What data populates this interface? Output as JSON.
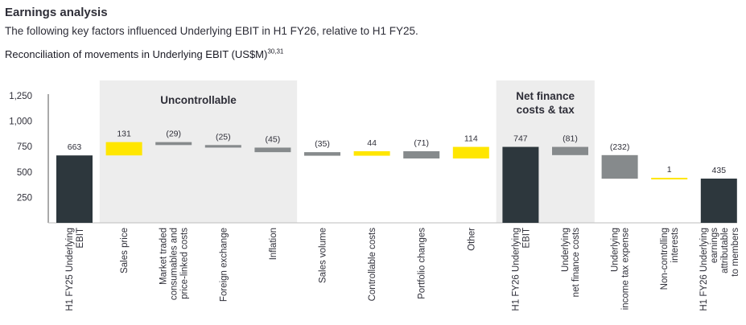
{
  "header": {
    "title": "Earnings analysis",
    "subtitle": "The following key factors influenced Underlying EBIT in H1 FY26, relative to H1 FY25.",
    "chart_title": "Reconciliation of movements in Underlying EBIT (US$M)",
    "chart_title_sup": "30,31"
  },
  "colors": {
    "total": "#2d373d",
    "positive": "#ffe600",
    "negative": "#868a8c",
    "band": "#ededed",
    "axis": "#555555",
    "text": "#2e2e38"
  },
  "chart_data": {
    "type": "bar",
    "subtype": "waterfall",
    "title": "Reconciliation of movements in Underlying EBIT (US$M)",
    "ylim": [
      0,
      1250
    ],
    "yticks": [
      250,
      500,
      750,
      1000,
      1250
    ],
    "ytick_labels": [
      "250",
      "500",
      "750",
      "1,000",
      "1,250"
    ],
    "bands": [
      {
        "label": "Uncontrollable",
        "from": 1,
        "to": 4
      },
      {
        "label_lines": [
          "Net finance",
          "costs & tax"
        ],
        "from": 9,
        "to": 10
      }
    ],
    "bars": [
      {
        "category_lines": [
          "H1 FY25 Underlying",
          "EBIT"
        ],
        "kind": "total",
        "start": 0,
        "end": 663,
        "label": "663"
      },
      {
        "category_lines": [
          "Sales price"
        ],
        "kind": "positive",
        "start": 663,
        "end": 794,
        "label": "131"
      },
      {
        "category_lines": [
          "Market traded",
          "consumables and",
          "price-linked costs"
        ],
        "kind": "negative",
        "start": 794,
        "end": 765,
        "label": "(29)"
      },
      {
        "category_lines": [
          "Foreign exchange"
        ],
        "kind": "negative",
        "start": 765,
        "end": 740,
        "label": "(25)"
      },
      {
        "category_lines": [
          "Inflation"
        ],
        "kind": "negative",
        "start": 740,
        "end": 695,
        "label": "(45)"
      },
      {
        "category_lines": [
          "Sales volume"
        ],
        "kind": "negative",
        "start": 695,
        "end": 660,
        "label": "(35)"
      },
      {
        "category_lines": [
          "Controllable costs"
        ],
        "kind": "positive",
        "start": 660,
        "end": 704,
        "label": "44"
      },
      {
        "category_lines": [
          "Portfolio changes"
        ],
        "kind": "negative",
        "start": 704,
        "end": 633,
        "label": "(71)"
      },
      {
        "category_lines": [
          "Other"
        ],
        "kind": "positive",
        "start": 633,
        "end": 747,
        "label": "114"
      },
      {
        "category_lines": [
          "H1 FY26 Underlying",
          "EBIT"
        ],
        "kind": "total",
        "start": 0,
        "end": 747,
        "label": "747"
      },
      {
        "category_lines": [
          "Underlying",
          "net finance costs"
        ],
        "kind": "negative",
        "start": 747,
        "end": 666,
        "label": "(81)"
      },
      {
        "category_lines": [
          "Underlying",
          "income tax expense"
        ],
        "kind": "negative",
        "start": 666,
        "end": 434,
        "label": "(232)"
      },
      {
        "category_lines": [
          "Non-controlling",
          "interests"
        ],
        "kind": "positive",
        "start": 434,
        "end": 435,
        "label": "1"
      },
      {
        "category_lines": [
          "H1 FY26 Underlying",
          "earnings",
          "attributable",
          "to members"
        ],
        "kind": "total",
        "start": 0,
        "end": 435,
        "label": "435"
      }
    ]
  }
}
